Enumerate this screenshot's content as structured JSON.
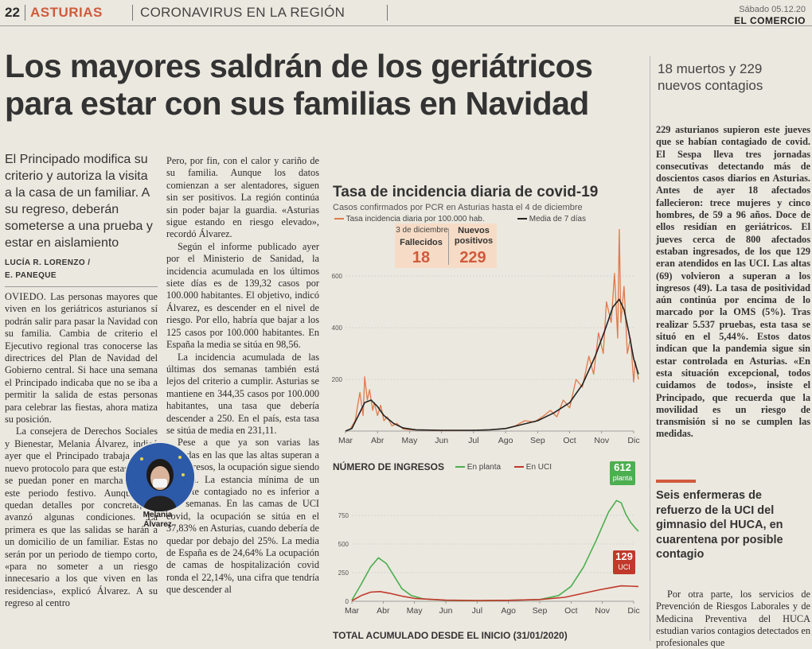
{
  "masthead": {
    "page_number": "22",
    "section": "ASTURIAS",
    "subsection": "CORONAVIRUS EN LA REGIÓN",
    "date": "Sábado 05.12.20",
    "newspaper": "EL COMERCIO"
  },
  "article": {
    "headline": "Los mayores saldrán de los geriátricos para estar con sus familias en Navidad",
    "deck": "El Principado modifica su criterio y autoriza la visita a la casa de un familiar. A su regreso, deberán someterse a una prueba y estar en aislamiento",
    "byline_1": "LUCÍA R. LORENZO /",
    "byline_2": "E. PANEQUE",
    "col1": [
      {
        "lede": "OVIEDO.",
        "text": " Las personas mayores que viven en los geriátricos asturianos sí podrán salir para pasar la Navidad con su familia. Cambia de criterio el Ejecutivo regional tras conocerse las directrices del Plan de Navidad del Gobierno central. Si hace una semana el Principado indicaba que no se iba a permitir la salida de estas personas para celebrar las fiestas, ahora matiza su posición."
      },
      {
        "lede": "",
        "text": "La consejera de Derechos Sociales y Bienestar, Melania Álvarez, indicó ayer que el Principado trabaja en un nuevo protocolo para que estas salidas se puedan poner en marcha durante este periodo festivo. Aunque aún quedan detalles por concretar, sí avanzó algunas condiciones. La primera es que las salidas se harán a un domicilio de un familiar. Estas no serán por un periodo de tiempo corto, «para no someter a un riesgo innecesario a los que viven en las residencias», explicó Álvarez. A su regreso al centro"
      }
    ],
    "col2": [
      "Pero, por fin, con el calor y cariño de su familia. Aunque los datos comienzan a ser alentadores, siguen sin ser positivos. La región continúa sin poder bajar la guardia. «Asturias sigue estando en riesgo elevado», recordó Álvarez.",
      "Según el informe publicado ayer por el Ministerio de Sanidad, la incidencia acumulada en los últimos siete días es de 139,32 casos por 100.000 habitantes. El objetivo, indicó Álvarez, es descender en el nivel de riesgo. Por ello, habría que bajar a los 125 casos por 100.000 habitantes. En España la media se sitúa en 98,56.",
      "La incidencia acumulada de las últimas dos semanas también está lejos del criterio a cumplir. Asturias se mantiene en 344,35 casos por 100.000 habitantes, una tasa que debería descender a 250. En el país, esta tasa se sitúa de media en 231,11.",
      "Pese a que ya son varias las jornadas en las que las altas superan a los ingresos, la ocupación sigue siendo elevada. La estancia mínima de un paciente contagiado no es inferior a tres semanas. En las camas de UCI covid, la ocupación se sitúa en el 37,83% en Asturias, cuando debería de quedar por debajo del 25%. La media de España es de 24,64% La ocupación de camas de hospitalización covid ronda el 22,14%, una cifra que tendría que descender al"
    ],
    "photo_caption_1": "Melania",
    "photo_caption_2": "Álvarez"
  },
  "sidebar": {
    "headline": "18 muertos y 229 nuevos contagios",
    "body": "229 asturianos supieron este jueves que se habían contagiado de covid. El Sespa lleva tres jornadas consecutivas detectando más de doscientos casos diarios en Asturias. Antes de ayer 18 afectados fallecieron: trece mujeres y cinco hombres, de 59 a 96 años. Doce de ellos residían en geriátricos. El jueves cerca de 800 afectados estaban ingresados, de los que 129 eran atendidos en las UCI. Las altas (69) volvieron a superan a los ingresos (49). La tasa de positividad aún continúa por encima de lo marcado por la OMS (5%). Tras realizar 5.537 pruebas, esta tasa se situó en el 5,44%. Estos datos indican que la pandemia sigue sin estar controlada en Asturias. «En esta situación excepcional, todos cuidamos de todos», insiste el Principado, que recuerda que la movilidad es un riesgo de transmisión si no se cumplen las medidas.",
    "brief_headline": "Seis enfermeras de refuerzo de la UCI del gimnasio del HUCA, en cuarentena por posible contagio",
    "brief_body": "Por otra parte, los servicios de Prevención de Riesgos Laborales y de Medicina Preventiva del HUCA estudian varios contagios detectados en profesionales que"
  },
  "colors": {
    "accent": "#d05a3c",
    "line_daily": "#e07a4a",
    "line_avg": "#222222",
    "line_planta": "#4caf50",
    "line_uci": "#c0392b",
    "highlight_box": "#f6dcc6"
  },
  "chart_data": [
    {
      "type": "line",
      "title": "Tasa de incidencia diaria de covid-19",
      "subtitle": "Casos confirmados por PCR en Asturias hasta el 4 de diciembre",
      "legend_daily": "Tasa incidencia diaria por 100.000 hab.",
      "legend_avg": "Media de 7 días",
      "x_ticks": [
        "Mar",
        "Abr",
        "May",
        "Jun",
        "Jul",
        "Ago",
        "Sep",
        "Oct",
        "Nov",
        "Dic"
      ],
      "y_ticks": [
        200,
        400,
        600
      ],
      "ylim": [
        0,
        800
      ],
      "grid": true,
      "highlight": {
        "date": "3 de diciembre",
        "label_deaths": "Fallecidos",
        "deaths": "18",
        "label_new": "Nuevos positivos",
        "new_cases": "229"
      },
      "series": [
        {
          "name": "Tasa incidencia diaria por 100.000 hab.",
          "values": [
            [
              0.0,
              0
            ],
            [
              0.15,
              8
            ],
            [
              0.3,
              40
            ],
            [
              0.45,
              150
            ],
            [
              0.55,
              60
            ],
            [
              0.6,
              210
            ],
            [
              0.68,
              120
            ],
            [
              0.75,
              160
            ],
            [
              0.85,
              80
            ],
            [
              0.9,
              110
            ],
            [
              1.0,
              60
            ],
            [
              1.1,
              100
            ],
            [
              1.2,
              40
            ],
            [
              1.3,
              55
            ],
            [
              1.45,
              20
            ],
            [
              1.6,
              30
            ],
            [
              1.8,
              8
            ],
            [
              2.0,
              5
            ],
            [
              2.5,
              3
            ],
            [
              3.0,
              2
            ],
            [
              3.5,
              2
            ],
            [
              4.0,
              3
            ],
            [
              4.5,
              5
            ],
            [
              5.0,
              10
            ],
            [
              5.3,
              20
            ],
            [
              5.6,
              40
            ],
            [
              5.9,
              35
            ],
            [
              6.2,
              60
            ],
            [
              6.4,
              80
            ],
            [
              6.6,
              55
            ],
            [
              6.8,
              120
            ],
            [
              7.0,
              90
            ],
            [
              7.2,
              200
            ],
            [
              7.4,
              170
            ],
            [
              7.6,
              290
            ],
            [
              7.75,
              220
            ],
            [
              7.9,
              380
            ],
            [
              8.05,
              300
            ],
            [
              8.15,
              500
            ],
            [
              8.3,
              420
            ],
            [
              8.4,
              610
            ],
            [
              8.5,
              360
            ],
            [
              8.55,
              780
            ],
            [
              8.6,
              420
            ],
            [
              8.7,
              560
            ],
            [
              8.8,
              300
            ],
            [
              8.9,
              360
            ],
            [
              9.0,
              190
            ],
            [
              9.05,
              270
            ],
            [
              9.15,
              200
            ]
          ]
        },
        {
          "name": "Media de 7 días",
          "values": [
            [
              0.0,
              0
            ],
            [
              0.2,
              10
            ],
            [
              0.4,
              60
            ],
            [
              0.6,
              110
            ],
            [
              0.8,
              120
            ],
            [
              1.0,
              95
            ],
            [
              1.2,
              60
            ],
            [
              1.5,
              30
            ],
            [
              1.8,
              12
            ],
            [
              2.2,
              5
            ],
            [
              3.0,
              3
            ],
            [
              4.0,
              3
            ],
            [
              4.5,
              5
            ],
            [
              5.0,
              10
            ],
            [
              5.5,
              25
            ],
            [
              6.0,
              40
            ],
            [
              6.5,
              70
            ],
            [
              7.0,
              110
            ],
            [
              7.4,
              180
            ],
            [
              7.8,
              290
            ],
            [
              8.1,
              390
            ],
            [
              8.35,
              480
            ],
            [
              8.55,
              510
            ],
            [
              8.7,
              470
            ],
            [
              8.85,
              380
            ],
            [
              9.0,
              280
            ],
            [
              9.15,
              220
            ]
          ]
        }
      ]
    },
    {
      "type": "line",
      "title": "NÚMERO DE INGRESOS",
      "legend_planta": "En planta",
      "legend_uci": "En UCI",
      "x_ticks": [
        "Mar",
        "Abr",
        "May",
        "Jun",
        "Jul",
        "Ago",
        "Sep",
        "Oct",
        "Nov",
        "Dic"
      ],
      "y_ticks": [
        0,
        250,
        500,
        750
      ],
      "ylim": [
        0,
        1000
      ],
      "grid": true,
      "badge_planta_value": "612",
      "badge_planta_label": "planta",
      "badge_uci_value": "129",
      "badge_uci_label": "UCI",
      "series": [
        {
          "name": "En planta",
          "values": [
            [
              0.0,
              10
            ],
            [
              0.3,
              150
            ],
            [
              0.6,
              300
            ],
            [
              0.85,
              380
            ],
            [
              1.1,
              330
            ],
            [
              1.35,
              220
            ],
            [
              1.6,
              110
            ],
            [
              1.9,
              50
            ],
            [
              2.3,
              20
            ],
            [
              3.0,
              8
            ],
            [
              4.0,
              5
            ],
            [
              5.0,
              8
            ],
            [
              6.0,
              15
            ],
            [
              6.6,
              50
            ],
            [
              7.0,
              130
            ],
            [
              7.4,
              300
            ],
            [
              7.8,
              530
            ],
            [
              8.2,
              780
            ],
            [
              8.45,
              880
            ],
            [
              8.6,
              860
            ],
            [
              8.75,
              760
            ],
            [
              8.9,
              690
            ],
            [
              9.05,
              640
            ],
            [
              9.15,
              612
            ]
          ]
        },
        {
          "name": "En UCI",
          "values": [
            [
              0.0,
              5
            ],
            [
              0.3,
              50
            ],
            [
              0.6,
              80
            ],
            [
              0.9,
              85
            ],
            [
              1.2,
              70
            ],
            [
              1.6,
              45
            ],
            [
              2.0,
              25
            ],
            [
              3.0,
              10
            ],
            [
              4.0,
              6
            ],
            [
              5.0,
              8
            ],
            [
              6.0,
              15
            ],
            [
              6.8,
              35
            ],
            [
              7.4,
              70
            ],
            [
              7.9,
              100
            ],
            [
              8.3,
              120
            ],
            [
              8.6,
              135
            ],
            [
              8.9,
              132
            ],
            [
              9.15,
              129
            ]
          ]
        }
      ]
    }
  ],
  "footer": {
    "chart_title": "TOTAL ACUMULADO DESDE EL INICIO (31/01/2020)"
  }
}
